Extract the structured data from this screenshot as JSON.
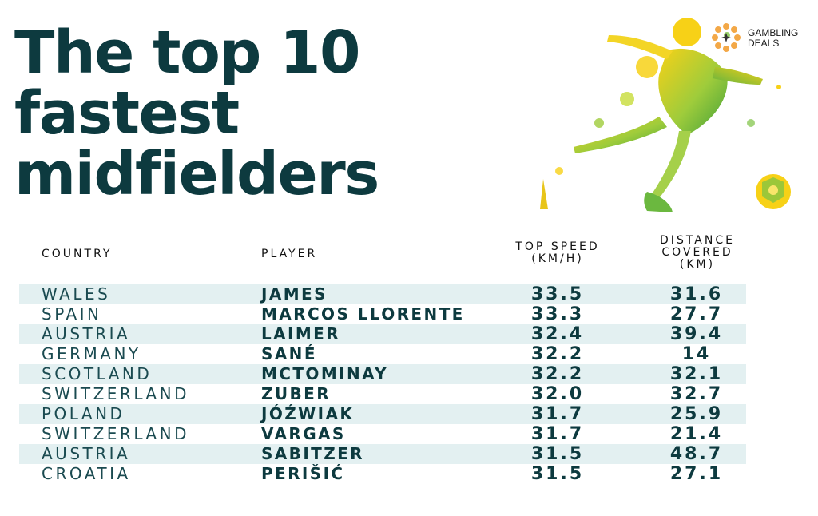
{
  "title_lines": [
    "The top 10",
    "fastest",
    "midfielders"
  ],
  "logo": {
    "line1": "GAMBLING",
    "line2": "DEALS"
  },
  "colors": {
    "text": "#0d3a3f",
    "row_shade": "#e3f0f1",
    "splash_green": "#7cc242",
    "splash_yellow": "#f7d117",
    "logo_orange": "#f3a847"
  },
  "chart_data": {
    "type": "table",
    "columns": [
      "COUNTRY",
      "PLAYER",
      "TOP SPEED (KM/H)",
      "DISTANCE COVERED (KM)"
    ],
    "rows": [
      {
        "country": "WALES",
        "player": "JAMES",
        "top_speed": "33.5",
        "distance": "31.6"
      },
      {
        "country": "SPAIN",
        "player": "MARCOS LLORENTE",
        "top_speed": "33.3",
        "distance": "27.7"
      },
      {
        "country": "AUSTRIA",
        "player": "LAIMER",
        "top_speed": "32.4",
        "distance": "39.4"
      },
      {
        "country": "GERMANY",
        "player": "SANÉ",
        "top_speed": "32.2",
        "distance": "14"
      },
      {
        "country": "SCOTLAND",
        "player": "MCTOMINAY",
        "top_speed": "32.2",
        "distance": "32.1"
      },
      {
        "country": "SWITZERLAND",
        "player": "ZUBER",
        "top_speed": "32.0",
        "distance": "32.7"
      },
      {
        "country": "POLAND",
        "player": "JÓŹWIAK",
        "top_speed": "31.7",
        "distance": "25.9"
      },
      {
        "country": "SWITZERLAND",
        "player": "VARGAS",
        "top_speed": "31.7",
        "distance": "21.4"
      },
      {
        "country": "AUSTRIA",
        "player": "SABITZER",
        "top_speed": "31.5",
        "distance": "48.7"
      },
      {
        "country": "CROATIA",
        "player": "PERIŠIĆ",
        "top_speed": "31.5",
        "distance": "27.1"
      }
    ]
  },
  "header_lines": {
    "speed": [
      "TOP SPEED",
      "(KM/H)"
    ],
    "distance": [
      "DISTANCE",
      "COVERED",
      "(KM)"
    ]
  }
}
